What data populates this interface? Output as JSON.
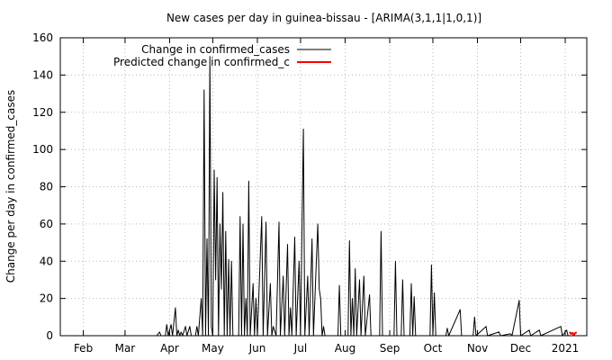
{
  "chart_data": {
    "type": "line",
    "title": "New cases per day in guinea-bissau -  [ARIMA(3,1,1|1,0,1)]",
    "xlabel": "",
    "ylabel": "Change per day in confirmed_cases",
    "ylim": [
      0,
      160
    ],
    "yticks": [
      0,
      20,
      40,
      60,
      80,
      100,
      120,
      140,
      160
    ],
    "xlim": [
      "2020-01-16",
      "2021-01-16"
    ],
    "xticks": [
      {
        "date": "2020-02-01",
        "label": "Feb"
      },
      {
        "date": "2020-03-01",
        "label": "Mar"
      },
      {
        "date": "2020-04-01",
        "label": "Apr"
      },
      {
        "date": "2020-05-01",
        "label": "May"
      },
      {
        "date": "2020-06-01",
        "label": "Jun"
      },
      {
        "date": "2020-07-01",
        "label": "Jul"
      },
      {
        "date": "2020-08-01",
        "label": "Aug"
      },
      {
        "date": "2020-09-01",
        "label": "Sep"
      },
      {
        "date": "2020-10-01",
        "label": "Oct"
      },
      {
        "date": "2020-11-01",
        "label": "Nov"
      },
      {
        "date": "2020-12-01",
        "label": "Dec"
      },
      {
        "date": "2021-01-01",
        "label": "2021"
      }
    ],
    "grid": true,
    "legend_position": "top-left",
    "series": [
      {
        "name": "Change in confirmed_cases",
        "color": "#000000",
        "points": [
          [
            "2020-03-23",
            0
          ],
          [
            "2020-03-25",
            2
          ],
          [
            "2020-03-26",
            0
          ],
          [
            "2020-03-29",
            0
          ],
          [
            "2020-03-30",
            6
          ],
          [
            "2020-03-31",
            0
          ],
          [
            "2020-04-02",
            6
          ],
          [
            "2020-04-03",
            0
          ],
          [
            "2020-04-05",
            15
          ],
          [
            "2020-04-06",
            0
          ],
          [
            "2020-04-07",
            3
          ],
          [
            "2020-04-08",
            0
          ],
          [
            "2020-04-09",
            2
          ],
          [
            "2020-04-10",
            0
          ],
          [
            "2020-04-12",
            5
          ],
          [
            "2020-04-13",
            0
          ],
          [
            "2020-04-15",
            5
          ],
          [
            "2020-04-16",
            0
          ],
          [
            "2020-04-19",
            0
          ],
          [
            "2020-04-20",
            5
          ],
          [
            "2020-04-21",
            0
          ],
          [
            "2020-04-23",
            20
          ],
          [
            "2020-04-24",
            0
          ],
          [
            "2020-04-25",
            132
          ],
          [
            "2020-04-26",
            0
          ],
          [
            "2020-04-27",
            52
          ],
          [
            "2020-04-28",
            0
          ],
          [
            "2020-04-29",
            150
          ],
          [
            "2020-04-30",
            5
          ],
          [
            "2020-05-01",
            0
          ],
          [
            "2020-05-02",
            89
          ],
          [
            "2020-05-03",
            30
          ],
          [
            "2020-05-04",
            85
          ],
          [
            "2020-05-05",
            0
          ],
          [
            "2020-05-06",
            60
          ],
          [
            "2020-05-07",
            25
          ],
          [
            "2020-05-08",
            77
          ],
          [
            "2020-05-09",
            0
          ],
          [
            "2020-05-10",
            56
          ],
          [
            "2020-05-11",
            0
          ],
          [
            "2020-05-12",
            41
          ],
          [
            "2020-05-13",
            0
          ],
          [
            "2020-05-14",
            40
          ],
          [
            "2020-05-15",
            0
          ],
          [
            "2020-05-19",
            0
          ],
          [
            "2020-05-20",
            64
          ],
          [
            "2020-05-21",
            0
          ],
          [
            "2020-05-22",
            60
          ],
          [
            "2020-05-23",
            0
          ],
          [
            "2020-05-24",
            20
          ],
          [
            "2020-05-25",
            0
          ],
          [
            "2020-05-26",
            83
          ],
          [
            "2020-05-27",
            0
          ],
          [
            "2020-05-29",
            28
          ],
          [
            "2020-05-30",
            0
          ],
          [
            "2020-05-31",
            20
          ],
          [
            "2020-06-01",
            0
          ],
          [
            "2020-06-04",
            64
          ],
          [
            "2020-06-05",
            0
          ],
          [
            "2020-06-07",
            61
          ],
          [
            "2020-06-08",
            0
          ],
          [
            "2020-06-10",
            28
          ],
          [
            "2020-06-11",
            0
          ],
          [
            "2020-06-12",
            5
          ],
          [
            "2020-06-14",
            0
          ],
          [
            "2020-06-16",
            61
          ],
          [
            "2020-06-17",
            0
          ],
          [
            "2020-06-19",
            32
          ],
          [
            "2020-06-20",
            0
          ],
          [
            "2020-06-22",
            49
          ],
          [
            "2020-06-23",
            0
          ],
          [
            "2020-06-24",
            15
          ],
          [
            "2020-06-25",
            0
          ],
          [
            "2020-06-27",
            53
          ],
          [
            "2020-06-28",
            0
          ],
          [
            "2020-06-30",
            40
          ],
          [
            "2020-07-01",
            0
          ],
          [
            "2020-07-03",
            111
          ],
          [
            "2020-07-04",
            0
          ],
          [
            "2020-07-06",
            32
          ],
          [
            "2020-07-07",
            0
          ],
          [
            "2020-07-09",
            52
          ],
          [
            "2020-07-10",
            0
          ],
          [
            "2020-07-13",
            60
          ],
          [
            "2020-07-14",
            25
          ],
          [
            "2020-07-15",
            20
          ],
          [
            "2020-07-16",
            0
          ],
          [
            "2020-07-17",
            5
          ],
          [
            "2020-07-18",
            0
          ],
          [
            "2020-07-27",
            0
          ],
          [
            "2020-07-28",
            27
          ],
          [
            "2020-07-29",
            0
          ],
          [
            "2020-08-03",
            0
          ],
          [
            "2020-08-04",
            51
          ],
          [
            "2020-08-05",
            0
          ],
          [
            "2020-08-06",
            20
          ],
          [
            "2020-08-07",
            0
          ],
          [
            "2020-08-08",
            36
          ],
          [
            "2020-08-09",
            0
          ],
          [
            "2020-08-11",
            30
          ],
          [
            "2020-08-12",
            0
          ],
          [
            "2020-08-14",
            32
          ],
          [
            "2020-08-15",
            0
          ],
          [
            "2020-08-18",
            22
          ],
          [
            "2020-08-19",
            0
          ],
          [
            "2020-08-25",
            0
          ],
          [
            "2020-08-26",
            56
          ],
          [
            "2020-08-27",
            0
          ],
          [
            "2020-09-04",
            0
          ],
          [
            "2020-09-05",
            40
          ],
          [
            "2020-09-06",
            0
          ],
          [
            "2020-09-09",
            0
          ],
          [
            "2020-09-10",
            30
          ],
          [
            "2020-09-11",
            0
          ],
          [
            "2020-09-15",
            0
          ],
          [
            "2020-09-16",
            28
          ],
          [
            "2020-09-17",
            0
          ],
          [
            "2020-09-18",
            21
          ],
          [
            "2020-09-19",
            0
          ],
          [
            "2020-09-29",
            0
          ],
          [
            "2020-09-30",
            38
          ],
          [
            "2020-10-01",
            0
          ],
          [
            "2020-10-02",
            23
          ],
          [
            "2020-10-03",
            0
          ],
          [
            "2020-10-10",
            0
          ],
          [
            "2020-10-11",
            4
          ],
          [
            "2020-10-12",
            0
          ],
          [
            "2020-10-20",
            14
          ],
          [
            "2020-10-21",
            0
          ],
          [
            "2020-10-29",
            0
          ],
          [
            "2020-10-30",
            10
          ],
          [
            "2020-10-31",
            0
          ],
          [
            "2020-11-07",
            5
          ],
          [
            "2020-11-08",
            0
          ],
          [
            "2020-11-16",
            2
          ],
          [
            "2020-11-17",
            0
          ],
          [
            "2020-11-24",
            1
          ],
          [
            "2020-11-25",
            0
          ],
          [
            "2020-11-30",
            19
          ],
          [
            "2020-12-01",
            0
          ],
          [
            "2020-12-07",
            3
          ],
          [
            "2020-12-08",
            0
          ],
          [
            "2020-12-14",
            3
          ],
          [
            "2020-12-15",
            0
          ],
          [
            "2020-12-29",
            5
          ],
          [
            "2020-12-30",
            0
          ],
          [
            "2021-01-02",
            3
          ],
          [
            "2021-01-03",
            0
          ]
        ]
      },
      {
        "name": "Predicted change in confirmed_c",
        "color": "#ff0000",
        "points": [
          [
            "2021-01-04",
            2
          ],
          [
            "2021-01-05",
            1
          ],
          [
            "2021-01-06",
            1.5
          ],
          [
            "2021-01-07",
            0.5
          ],
          [
            "2021-01-08",
            1.5
          ],
          [
            "2021-01-09",
            1.8
          ]
        ]
      }
    ]
  }
}
